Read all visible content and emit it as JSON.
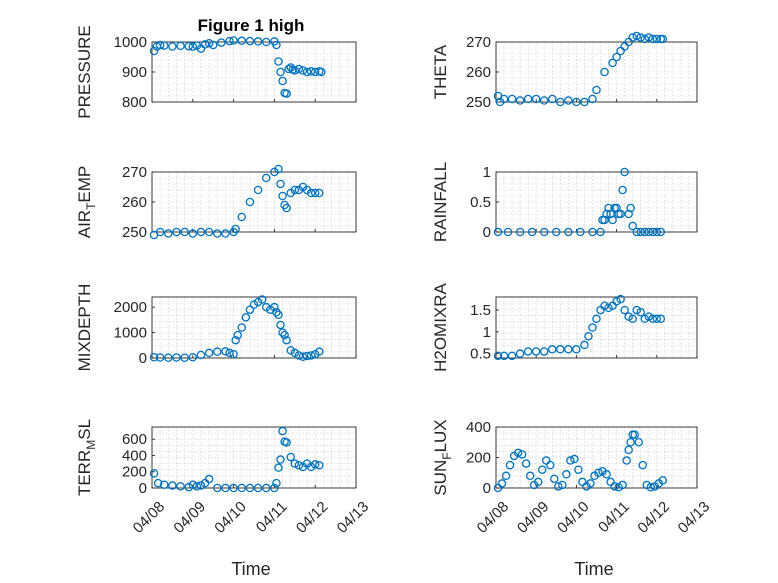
{
  "figure": {
    "title": "Figure 1 high",
    "x_tick_labels": [
      "04/08",
      "04/09",
      "04/10",
      "04/11",
      "04/12",
      "04/13"
    ],
    "x_label": "Time"
  },
  "chart_data": [
    {
      "type": "scatter",
      "ylabel": "PRESSURE",
      "ylabel_sub": "",
      "ylabel_tail": "",
      "ylim": [
        800,
        1000
      ],
      "yticks": [
        800,
        900,
        1000
      ],
      "x": [
        0.05,
        0.12,
        0.2,
        0.3,
        0.5,
        0.7,
        0.9,
        1.0,
        1.1,
        1.2,
        1.3,
        1.4,
        1.5,
        1.7,
        1.9,
        2.0,
        2.2,
        2.4,
        2.6,
        2.8,
        3.0,
        3.05,
        3.1,
        3.15,
        3.2,
        3.25,
        3.3,
        3.35,
        3.4,
        3.45,
        3.5,
        3.6,
        3.7,
        3.8,
        3.9,
        4.0,
        4.1,
        4.15
      ],
      "y": [
        970,
        985,
        990,
        988,
        985,
        987,
        986,
        984,
        988,
        978,
        992,
        996,
        990,
        998,
        1003,
        1005,
        1004,
        1003,
        1002,
        1000,
        1002,
        990,
        935,
        900,
        870,
        830,
        828,
        910,
        915,
        908,
        905,
        910,
        905,
        900,
        902,
        900,
        902,
        900
      ]
    },
    {
      "type": "scatter",
      "ylabel": "THETA",
      "ylabel_sub": "",
      "ylabel_tail": "",
      "ylim": [
        250,
        270
      ],
      "yticks": [
        250,
        260,
        270
      ],
      "x": [
        0.05,
        0.1,
        0.2,
        0.4,
        0.6,
        0.8,
        1.0,
        1.2,
        1.4,
        1.6,
        1.8,
        2.0,
        2.2,
        2.4,
        2.5,
        2.7,
        2.9,
        3.0,
        3.1,
        3.2,
        3.3,
        3.4,
        3.5,
        3.6,
        3.7,
        3.8,
        3.9,
        4.0,
        4.1,
        4.15
      ],
      "y": [
        252,
        250,
        251,
        251,
        250.5,
        251,
        251,
        250.5,
        251,
        250,
        250.5,
        250,
        250,
        251,
        254,
        260,
        263,
        265,
        267,
        268.5,
        270,
        271.5,
        272,
        271.5,
        271,
        271.5,
        271,
        271,
        271,
        271
      ]
    },
    {
      "type": "scatter",
      "ylabel": "AIR",
      "ylabel_sub": "T",
      "ylabel_tail": "EMP",
      "ylim": [
        250,
        270
      ],
      "yticks": [
        250,
        260,
        270
      ],
      "x": [
        0.05,
        0.2,
        0.4,
        0.6,
        0.8,
        1.0,
        1.2,
        1.4,
        1.6,
        1.8,
        2.0,
        2.05,
        2.2,
        2.4,
        2.6,
        2.8,
        3.0,
        3.1,
        3.15,
        3.2,
        3.25,
        3.3,
        3.4,
        3.5,
        3.6,
        3.7,
        3.8,
        3.9,
        4.0,
        4.1
      ],
      "y": [
        249,
        250,
        249.5,
        250,
        250,
        249.5,
        250,
        250,
        249.5,
        249.5,
        250,
        251,
        255,
        260,
        264,
        268,
        270,
        271,
        266,
        262,
        259,
        258,
        263,
        264,
        264,
        265,
        264,
        263,
        263,
        263
      ]
    },
    {
      "type": "scatter",
      "ylabel": "RAINFALL",
      "ylabel_sub": "",
      "ylabel_tail": "",
      "ylim": [
        0,
        1
      ],
      "yticks": [
        0,
        0.5,
        1
      ],
      "x": [
        0.05,
        0.3,
        0.6,
        0.9,
        1.2,
        1.5,
        1.8,
        2.1,
        2.4,
        2.6,
        2.65,
        2.7,
        2.75,
        2.8,
        2.85,
        2.9,
        2.95,
        3.0,
        3.05,
        3.1,
        3.15,
        3.2,
        3.3,
        3.35,
        3.4,
        3.5,
        3.6,
        3.7,
        3.8,
        3.9,
        4.0,
        4.1
      ],
      "y": [
        0,
        0,
        0,
        0,
        0,
        0,
        0,
        0,
        0,
        0,
        0.2,
        0.2,
        0.3,
        0.4,
        0.3,
        0.2,
        0.4,
        0.4,
        0.3,
        0.3,
        0.7,
        1.0,
        0.3,
        0.4,
        0.1,
        0,
        0,
        0,
        0,
        0,
        0,
        0
      ]
    },
    {
      "type": "scatter",
      "ylabel": "MIXDEPTH",
      "ylabel_sub": "",
      "ylabel_tail": "",
      "ylim": [
        0,
        2400
      ],
      "yticks": [
        0,
        1000,
        2000
      ],
      "x": [
        0.05,
        0.2,
        0.4,
        0.6,
        0.8,
        1.0,
        1.2,
        1.4,
        1.6,
        1.8,
        1.9,
        2.0,
        2.05,
        2.1,
        2.2,
        2.3,
        2.4,
        2.5,
        2.6,
        2.7,
        2.8,
        2.9,
        3.0,
        3.05,
        3.1,
        3.15,
        3.2,
        3.25,
        3.3,
        3.4,
        3.5,
        3.6,
        3.7,
        3.8,
        3.9,
        4.0,
        4.1
      ],
      "y": [
        30,
        20,
        10,
        20,
        10,
        30,
        120,
        200,
        250,
        260,
        200,
        150,
        700,
        900,
        1200,
        1600,
        1900,
        2100,
        2200,
        2300,
        2000,
        1900,
        2000,
        1800,
        1700,
        1300,
        1000,
        900,
        700,
        300,
        200,
        100,
        50,
        80,
        100,
        150,
        250
      ]
    },
    {
      "type": "scatter",
      "ylabel": "H2OMIXRA",
      "ylabel_sub": "",
      "ylabel_tail": "",
      "ylim": [
        0.4,
        1.8
      ],
      "yticks": [
        0.5,
        1,
        1.5
      ],
      "x": [
        0.05,
        0.2,
        0.4,
        0.6,
        0.8,
        1.0,
        1.2,
        1.4,
        1.6,
        1.8,
        2.0,
        2.2,
        2.3,
        2.4,
        2.5,
        2.6,
        2.7,
        2.8,
        2.9,
        3.0,
        3.1,
        3.2,
        3.3,
        3.4,
        3.5,
        3.6,
        3.7,
        3.8,
        3.9,
        4.0,
        4.1
      ],
      "y": [
        0.45,
        0.45,
        0.45,
        0.5,
        0.55,
        0.55,
        0.55,
        0.6,
        0.6,
        0.6,
        0.6,
        0.7,
        0.9,
        1.1,
        1.3,
        1.5,
        1.6,
        1.55,
        1.6,
        1.7,
        1.75,
        1.5,
        1.35,
        1.3,
        1.5,
        1.45,
        1.3,
        1.35,
        1.3,
        1.3,
        1.3
      ]
    },
    {
      "type": "scatter",
      "ylabel": "TERR",
      "ylabel_sub": "M",
      "ylabel_tail": "SL",
      "ylim": [
        0,
        750
      ],
      "yticks": [
        0,
        200,
        400,
        600
      ],
      "x": [
        0.05,
        0.15,
        0.3,
        0.5,
        0.7,
        0.9,
        1.0,
        1.1,
        1.2,
        1.3,
        1.4,
        1.6,
        1.8,
        2.0,
        2.2,
        2.4,
        2.6,
        2.8,
        3.0,
        3.05,
        3.1,
        3.15,
        3.2,
        3.25,
        3.3,
        3.4,
        3.5,
        3.6,
        3.7,
        3.8,
        3.9,
        4.0,
        4.1
      ],
      "y": [
        180,
        60,
        40,
        30,
        20,
        10,
        40,
        20,
        30,
        60,
        110,
        0,
        0,
        0,
        0,
        0,
        0,
        0,
        0,
        60,
        250,
        350,
        700,
        570,
        560,
        380,
        300,
        280,
        260,
        300,
        260,
        290,
        280
      ]
    },
    {
      "type": "scatter",
      "ylabel": "SUN",
      "ylabel_sub": "F",
      "ylabel_tail": "LUX",
      "ylim": [
        0,
        400
      ],
      "yticks": [
        0,
        200,
        400
      ],
      "x": [
        0.05,
        0.15,
        0.25,
        0.35,
        0.45,
        0.55,
        0.65,
        0.75,
        0.85,
        0.95,
        1.05,
        1.15,
        1.25,
        1.35,
        1.45,
        1.55,
        1.65,
        1.75,
        1.85,
        1.95,
        2.05,
        2.15,
        2.25,
        2.35,
        2.45,
        2.55,
        2.65,
        2.75,
        2.85,
        2.95,
        3.05,
        3.15,
        3.25,
        3.3,
        3.35,
        3.4,
        3.45,
        3.55,
        3.65,
        3.75,
        3.85,
        3.95,
        4.05,
        4.15
      ],
      "y": [
        0,
        30,
        80,
        150,
        210,
        230,
        220,
        160,
        80,
        20,
        40,
        120,
        180,
        150,
        60,
        10,
        20,
        90,
        180,
        190,
        120,
        40,
        10,
        30,
        80,
        100,
        110,
        90,
        40,
        10,
        5,
        20,
        180,
        250,
        300,
        350,
        350,
        300,
        150,
        20,
        5,
        10,
        30,
        50
      ]
    }
  ]
}
